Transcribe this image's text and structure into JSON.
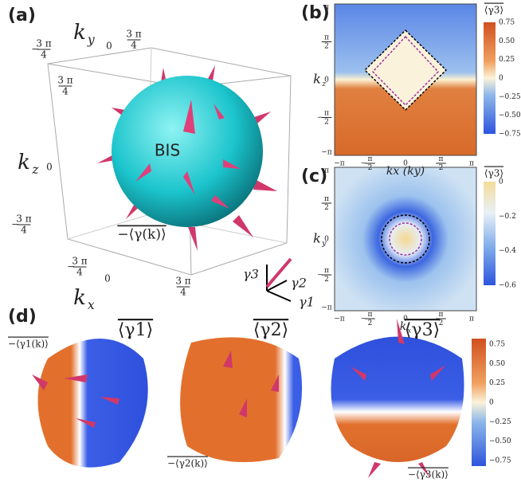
{
  "panel_a": {
    "label": "(a)",
    "ky": {
      "base": "k",
      "sub": "y"
    },
    "kz": {
      "base": "k",
      "sub": "z"
    },
    "kx": {
      "base": "k",
      "sub": "x"
    },
    "ticks_top": [
      {
        "sign": "−",
        "num": "3 π",
        "den": "4"
      },
      {
        "text": "0"
      },
      {
        "num": "3 π",
        "den": "4"
      }
    ],
    "ticks_left": [
      {
        "num": "3 π",
        "den": "4"
      },
      {
        "text": "0"
      },
      {
        "sign": "−",
        "num": "3 π",
        "den": "4"
      }
    ],
    "ticks_bottom": [
      {
        "sign": "−",
        "num": "3 π",
        "den": "4"
      },
      {
        "text": "0"
      },
      {
        "num": "3 π",
        "den": "4"
      }
    ],
    "surface_label": "BIS",
    "vector_label": "−⟨γ(k)⟩",
    "triad": [
      "γ3",
      "γ2",
      "γ1"
    ]
  },
  "panel_b": {
    "label": "(b)",
    "ylabel": {
      "base": "k",
      "sub": "z"
    },
    "xlabel": "kx (ky)",
    "yticks": [
      {
        "text": "π"
      },
      {
        "num": "π",
        "den": "2"
      },
      {
        "text": "0"
      },
      {
        "sign": "−",
        "num": "π",
        "den": "2"
      },
      {
        "text": "−π"
      }
    ],
    "xticks": [
      {
        "text": "−π"
      },
      {
        "sign": "−",
        "num": "π",
        "den": "2"
      },
      {
        "text": "0"
      },
      {
        "num": "π",
        "den": "2"
      },
      {
        "text": "π"
      }
    ],
    "colorbar_title": "⟨γ3⟩",
    "colorbar_ticks": [
      "0.75",
      "0.50",
      "0.25",
      "0",
      "−0.25",
      "−0.50",
      "−0.75"
    ]
  },
  "panel_c": {
    "label": "(c)",
    "ylabel": {
      "base": "k",
      "sub": "y"
    },
    "xlabel": {
      "base": "k",
      "sub": "x"
    },
    "yticks": [
      {
        "text": "π"
      },
      {
        "num": "π",
        "den": "2"
      },
      {
        "text": "0"
      },
      {
        "sign": "−",
        "num": "π",
        "den": "2"
      },
      {
        "text": "−π"
      }
    ],
    "xticks": [
      {
        "text": "−π"
      },
      {
        "sign": "−",
        "num": "π",
        "den": "2"
      },
      {
        "text": "0"
      },
      {
        "num": "π",
        "den": "2"
      },
      {
        "text": "π"
      }
    ],
    "colorbar_title": "⟨γ3⟩",
    "colorbar_ticks": [
      "0",
      "−0.2",
      "−0.4",
      "−0.6"
    ]
  },
  "panel_d": {
    "label": "(d)",
    "titles": [
      "⟨γ1⟩",
      "⟨γ2⟩",
      "⟨γ3⟩"
    ],
    "vectors": [
      "−⟨γ1(k)⟩",
      "−⟨γ2(k)⟩",
      "−⟨γ3(k)⟩"
    ],
    "colorbar_ticks": [
      "0.75",
      "0.50",
      "0.25",
      "0",
      "−0.25",
      "−0.50",
      "−0.75"
    ]
  }
}
